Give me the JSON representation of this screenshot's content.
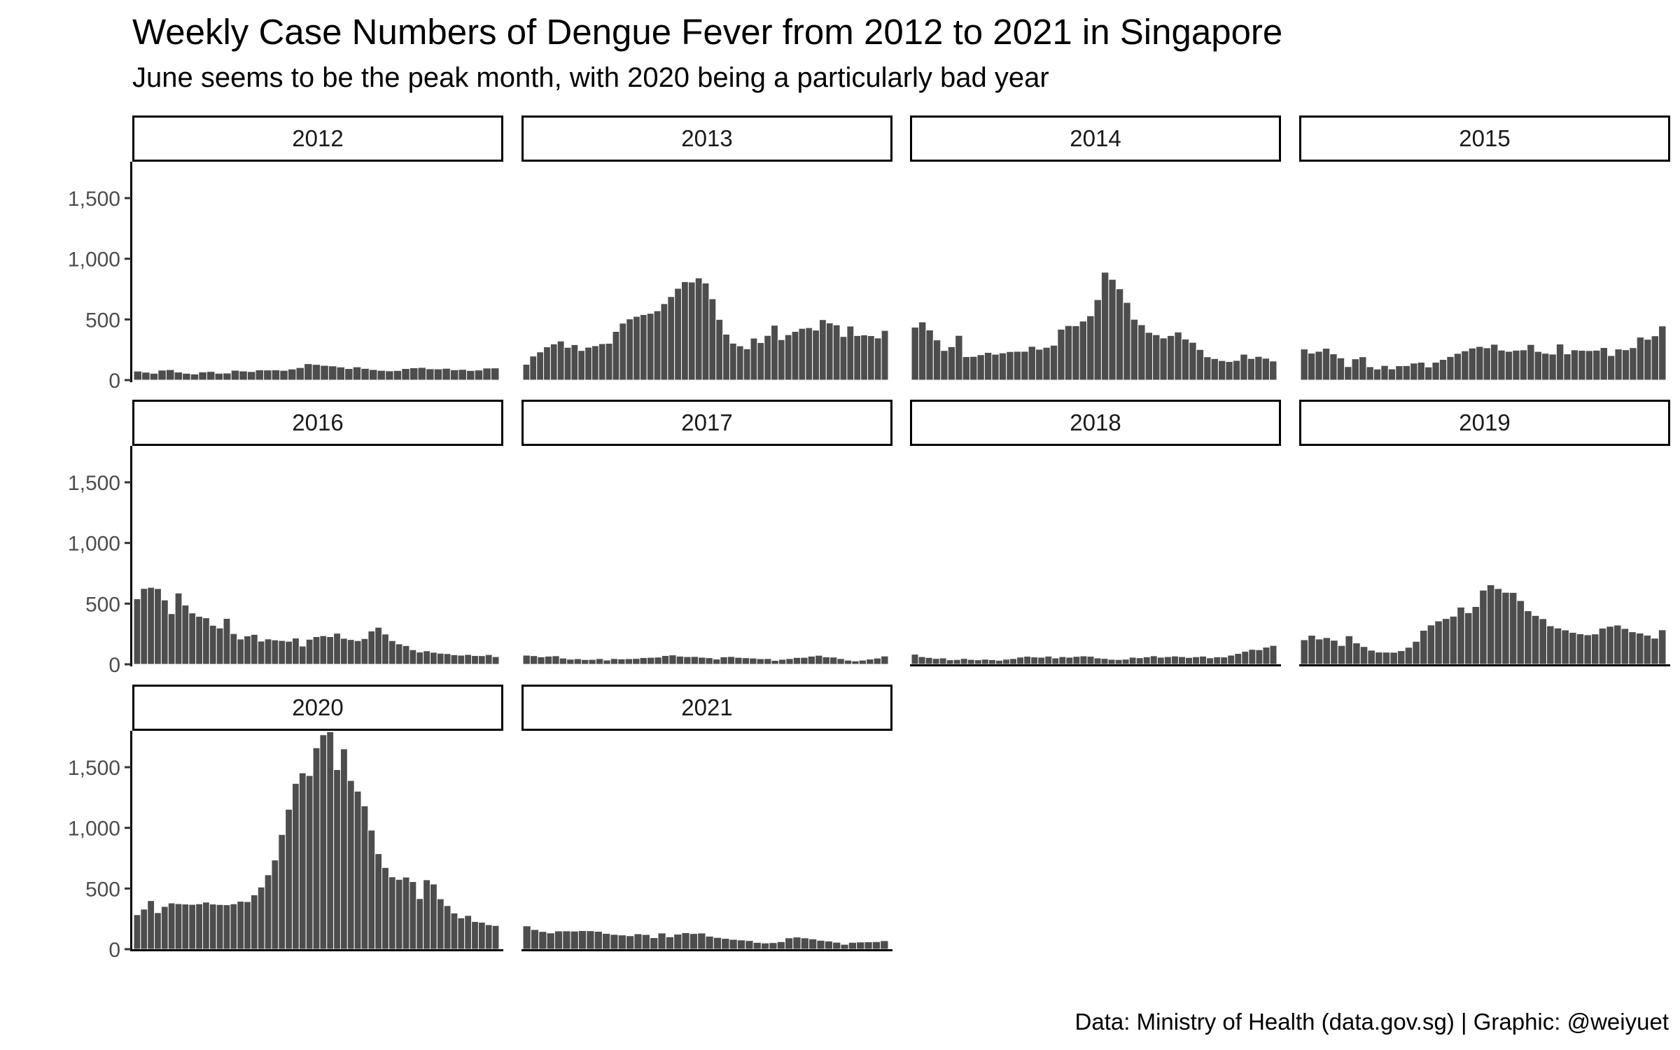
{
  "title": "Weekly Case Numbers of Dengue Fever from 2012 to 2021 in Singapore",
  "subtitle": "June seems to be the peak month, with 2020 being a particularly bad year",
  "caption": "Data: Ministry of Health (data.gov.sg) | Graphic: @weiyuet",
  "colors": {
    "bar": "#4d4d4d",
    "bar_outline": "#ffffff",
    "axis": "#000000",
    "strip_border": "#000000",
    "strip_fill": "#ffffff",
    "tick_text": "#4d4d4d"
  },
  "chart_data": {
    "type": "bar",
    "title": "Weekly Case Numbers of Dengue Fever from 2012 to 2021 in Singapore",
    "subtitle": "June seems to be the peak month, with 2020 being a particularly bad year",
    "xlabel": "",
    "ylabel": "",
    "layout": "faceted by year, 4 columns, shared y axis",
    "ylim": [
      0,
      1800
    ],
    "y_ticks": [
      0,
      500,
      1000,
      1500
    ],
    "y_tick_labels": [
      "0",
      "500",
      "1,000",
      "1,500"
    ],
    "grid": false,
    "legend": "none",
    "facets": [
      {
        "label": "2012",
        "values": [
          74,
          65,
          56,
          82,
          86,
          66,
          56,
          50,
          67,
          71,
          56,
          58,
          81,
          75,
          70,
          84,
          83,
          84,
          80,
          91,
          103,
          135,
          129,
          121,
          117,
          108,
          95,
          109,
          96,
          87,
          80,
          76,
          79,
          95,
          101,
          104,
          93,
          92,
          97,
          85,
          88,
          79,
          83,
          99,
          100
        ]
      },
      {
        "label": "2013",
        "values": [
          130,
          198,
          232,
          274,
          298,
          322,
          270,
          292,
          244,
          271,
          283,
          300,
          303,
          401,
          469,
          504,
          525,
          540,
          550,
          571,
          630,
          688,
          756,
          811,
          808,
          842,
          800,
          670,
          500,
          378,
          304,
          282,
          258,
          346,
          309,
          368,
          452,
          333,
          374,
          401,
          426,
          432,
          412,
          498,
          471,
          455,
          359,
          445,
          367,
          372,
          366,
          347,
          409
        ]
      },
      {
        "label": "2014",
        "values": [
          436,
          479,
          413,
          331,
          244,
          275,
          368,
          193,
          195,
          209,
          228,
          213,
          224,
          235,
          237,
          237,
          278,
          254,
          270,
          287,
          419,
          449,
          448,
          486,
          530,
          663,
          889,
          830,
          752,
          640,
          501,
          456,
          393,
          374,
          347,
          367,
          396,
          338,
          311,
          252,
          192,
          177,
          161,
          153,
          162,
          213,
          178,
          195,
          180,
          157
        ]
      },
      {
        "label": "2015",
        "values": [
          256,
          222,
          237,
          262,
          216,
          183,
          111,
          175,
          192,
          110,
          91,
          120,
          92,
          118,
          119,
          140,
          147,
          108,
          147,
          170,
          194,
          220,
          241,
          264,
          277,
          266,
          295,
          247,
          237,
          246,
          249,
          293,
          236,
          221,
          214,
          297,
          216,
          249,
          245,
          243,
          246,
          268,
          202,
          256,
          250,
          267,
          354,
          336,
          365,
          446
        ]
      },
      {
        "label": "2016",
        "values": [
          540,
          625,
          634,
          624,
          530,
          417,
          587,
          488,
          423,
          395,
          383,
          321,
          299,
          378,
          253,
          208,
          234,
          246,
          191,
          209,
          201,
          196,
          190,
          216,
          150,
          206,
          228,
          236,
          228,
          256,
          214,
          204,
          195,
          212,
          274,
          305,
          249,
          195,
          168,
          154,
          120,
          101,
          111,
          99,
          91,
          88,
          79,
          75,
          81,
          72,
          71,
          80,
          63
        ]
      },
      {
        "label": "2017",
        "values": [
          75,
          71,
          61,
          67,
          70,
          51,
          42,
          46,
          39,
          40,
          47,
          35,
          47,
          44,
          46,
          48,
          55,
          57,
          59,
          72,
          77,
          67,
          63,
          64,
          58,
          54,
          43,
          61,
          64,
          57,
          54,
          51,
          46,
          47,
          32,
          41,
          47,
          56,
          57,
          67,
          74,
          61,
          59,
          47,
          34,
          28,
          34,
          43,
          51,
          68
        ]
      },
      {
        "label": "2018",
        "values": [
          83,
          63,
          56,
          48,
          52,
          37,
          39,
          48,
          40,
          37,
          42,
          38,
          33,
          42,
          47,
          59,
          66,
          60,
          58,
          67,
          52,
          63,
          58,
          65,
          69,
          66,
          52,
          48,
          41,
          39,
          42,
          58,
          54,
          61,
          70,
          58,
          63,
          68,
          63,
          56,
          62,
          67,
          53,
          61,
          60,
          75,
          89,
          107,
          123,
          120,
          141,
          155
        ]
      },
      {
        "label": "2019",
        "values": [
          202,
          239,
          208,
          220,
          198,
          155,
          235,
          176,
          146,
          116,
          101,
          100,
          99,
          112,
          140,
          189,
          280,
          324,
          357,
          377,
          396,
          471,
          425,
          476,
          611,
          655,
          624,
          593,
          592,
          525,
          441,
          402,
          376,
          317,
          299,
          283,
          263,
          251,
          243,
          250,
          298,
          313,
          323,
          295,
          268,
          257,
          240,
          215,
          284
        ]
      },
      {
        "label": "2020",
        "values": [
          284,
          330,
          400,
          301,
          352,
          381,
          375,
          372,
          369,
          374,
          388,
          372,
          368,
          366,
          374,
          395,
          392,
          448,
          512,
          613,
          735,
          945,
          1153,
          1366,
          1453,
          1431,
          1660,
          1767,
          1792,
          1480,
          1651,
          1390,
          1302,
          1181,
          981,
          787,
          673,
          596,
          575,
          594,
          557,
          417,
          572,
          537,
          415,
          359,
          298,
          258,
          278,
          228,
          222,
          202,
          195
        ]
      },
      {
        "label": "2021",
        "values": [
          192,
          162,
          146,
          134,
          150,
          151,
          149,
          153,
          152,
          147,
          130,
          122,
          117,
          111,
          127,
          121,
          95,
          133,
          102,
          124,
          136,
          129,
          133,
          107,
          97,
          89,
          81,
          76,
          71,
          56,
          51,
          54,
          62,
          93,
          100,
          93,
          85,
          73,
          67,
          57,
          40,
          56,
          59,
          61,
          62,
          70
        ]
      }
    ]
  }
}
